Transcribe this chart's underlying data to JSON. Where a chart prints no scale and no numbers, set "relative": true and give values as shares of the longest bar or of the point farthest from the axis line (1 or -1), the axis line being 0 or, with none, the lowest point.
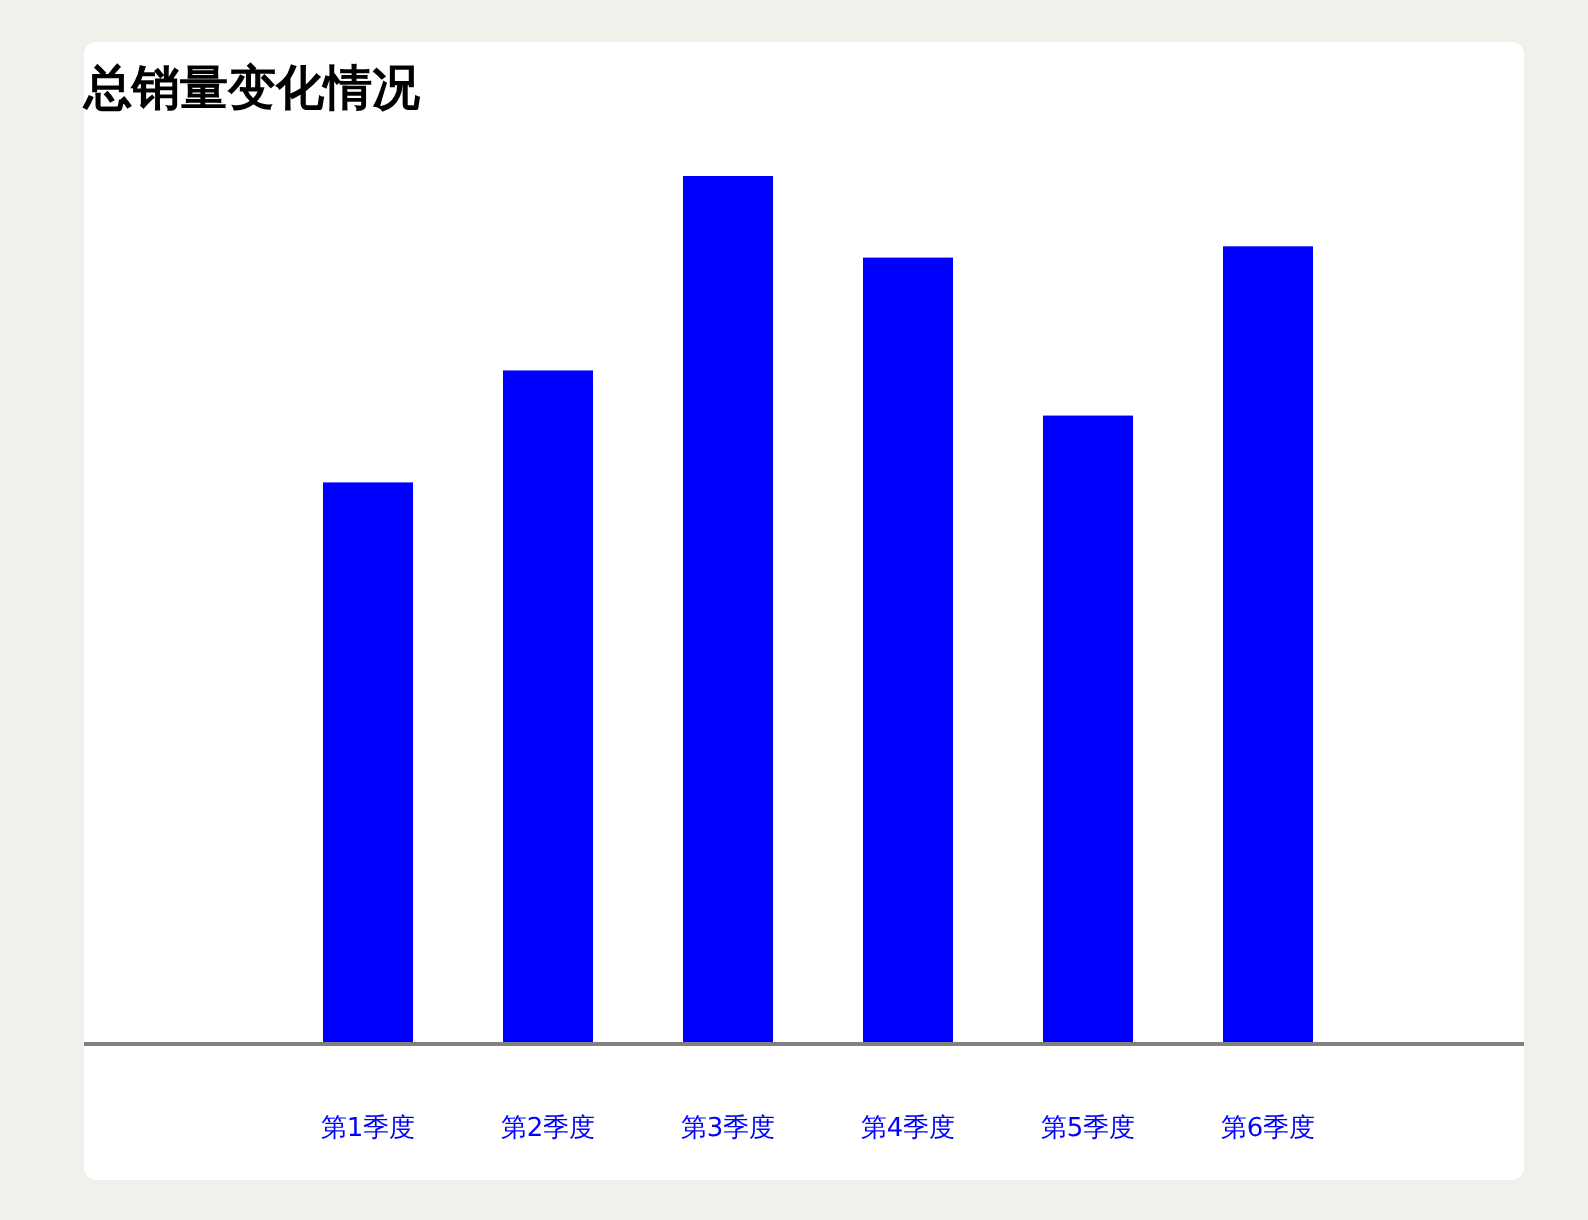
{
  "chart_data": {
    "type": "bar",
    "title": "总销量变化情况",
    "relative": true,
    "categories": [
      "第1季度",
      "第2季度",
      "第3季度",
      "第4季度",
      "第5季度",
      "第6季度"
    ],
    "values": [
      0.647,
      0.776,
      1,
      0.906,
      0.724,
      0.919
    ],
    "color": "#0000ff"
  }
}
